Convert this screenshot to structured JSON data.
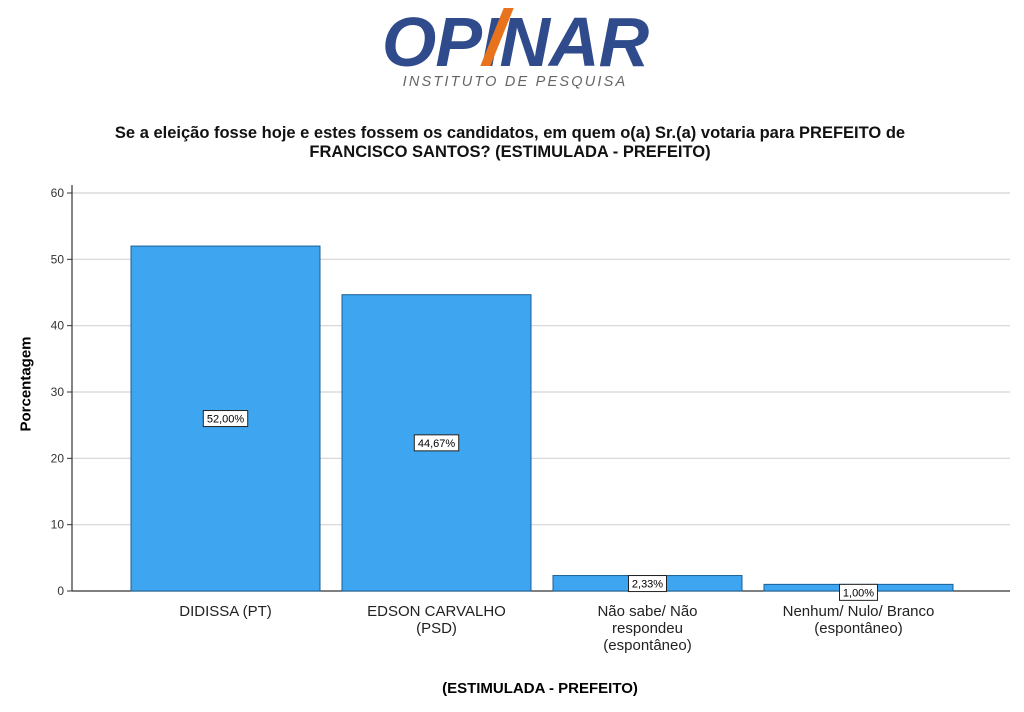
{
  "logo": {
    "name": "OPINAR",
    "subtitle": "INSTITUTO DE PESQUISA"
  },
  "colors": {
    "bar": "#3ea6f0",
    "bar_stroke": "#1a5f96",
    "grid": "#d4d4d4",
    "logo_blue": "#2f4b8c",
    "logo_orange": "#e8731c"
  },
  "chart_data": {
    "type": "bar",
    "title_lines": [
      "Se a eleição fosse hoje e estes fossem os candidatos, em quem o(a) Sr.(a) votaria para PREFEITO de",
      "FRANCISCO SANTOS? (ESTIMULADA - PREFEITO)"
    ],
    "xlabel": "(ESTIMULADA - PREFEITO)",
    "ylabel": "Porcentagem",
    "ylim": [
      0,
      60
    ],
    "yticks": [
      0,
      10,
      20,
      30,
      40,
      50,
      60
    ],
    "grid": true,
    "categories": [
      [
        "DIDISSA (PT)"
      ],
      [
        "EDSON CARVALHO",
        "(PSD)"
      ],
      [
        "Não sabe/ Não",
        "respondeu",
        "(espontâneo)"
      ],
      [
        "Nenhum/ Nulo/ Branco",
        "(espontâneo)"
      ]
    ],
    "values": [
      52.0,
      44.67,
      2.33,
      1.0
    ],
    "data_labels": [
      "52,00%",
      "44,67%",
      "2,33%",
      "1,00%"
    ]
  }
}
